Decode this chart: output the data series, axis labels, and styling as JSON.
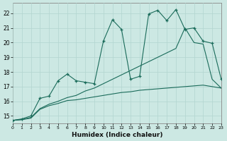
{
  "xlabel": "Humidex (Indice chaleur)",
  "bg_color": "#cce8e3",
  "line_color": "#1a6b5a",
  "grid_color": "#b2d5cf",
  "xlim": [
    0,
    23
  ],
  "ylim": [
    14.5,
    22.7
  ],
  "xticks": [
    0,
    1,
    2,
    3,
    4,
    5,
    6,
    7,
    8,
    9,
    10,
    11,
    12,
    13,
    14,
    15,
    16,
    17,
    18,
    19,
    20,
    21,
    22,
    23
  ],
  "yticks": [
    15,
    16,
    17,
    18,
    19,
    20,
    21,
    22
  ],
  "jagged_x": [
    0,
    1,
    2,
    3,
    4,
    5,
    6,
    7,
    8,
    9,
    10,
    11,
    12,
    13,
    14,
    15,
    16,
    17,
    18,
    19,
    20,
    21,
    22,
    23
  ],
  "jagged_y": [
    14.7,
    14.8,
    15.0,
    16.2,
    16.35,
    17.4,
    17.85,
    17.4,
    17.3,
    17.2,
    20.1,
    21.55,
    20.9,
    17.5,
    17.7,
    21.95,
    22.2,
    21.5,
    22.25,
    20.9,
    21.0,
    20.1,
    19.95,
    17.5
  ],
  "diagonal_x": [
    0,
    1,
    2,
    3,
    4,
    5,
    6,
    7,
    8,
    9,
    10,
    11,
    12,
    13,
    14,
    15,
    16,
    17,
    18,
    19,
    20,
    21,
    22,
    23
  ],
  "diagonal_y": [
    14.7,
    14.75,
    14.9,
    15.5,
    15.8,
    16.0,
    16.25,
    16.4,
    16.7,
    16.9,
    17.2,
    17.5,
    17.8,
    18.1,
    18.4,
    18.7,
    19.0,
    19.3,
    19.6,
    21.0,
    20.0,
    19.9,
    17.5,
    16.9
  ],
  "flat_x": [
    0,
    1,
    2,
    3,
    4,
    5,
    6,
    7,
    8,
    9,
    10,
    11,
    12,
    13,
    14,
    15,
    16,
    17,
    18,
    19,
    20,
    21,
    22,
    23
  ],
  "flat_y": [
    14.7,
    14.75,
    14.85,
    15.45,
    15.7,
    15.85,
    16.05,
    16.1,
    16.2,
    16.3,
    16.4,
    16.5,
    16.6,
    16.65,
    16.75,
    16.8,
    16.85,
    16.9,
    16.95,
    17.0,
    17.05,
    17.1,
    17.0,
    16.9
  ]
}
